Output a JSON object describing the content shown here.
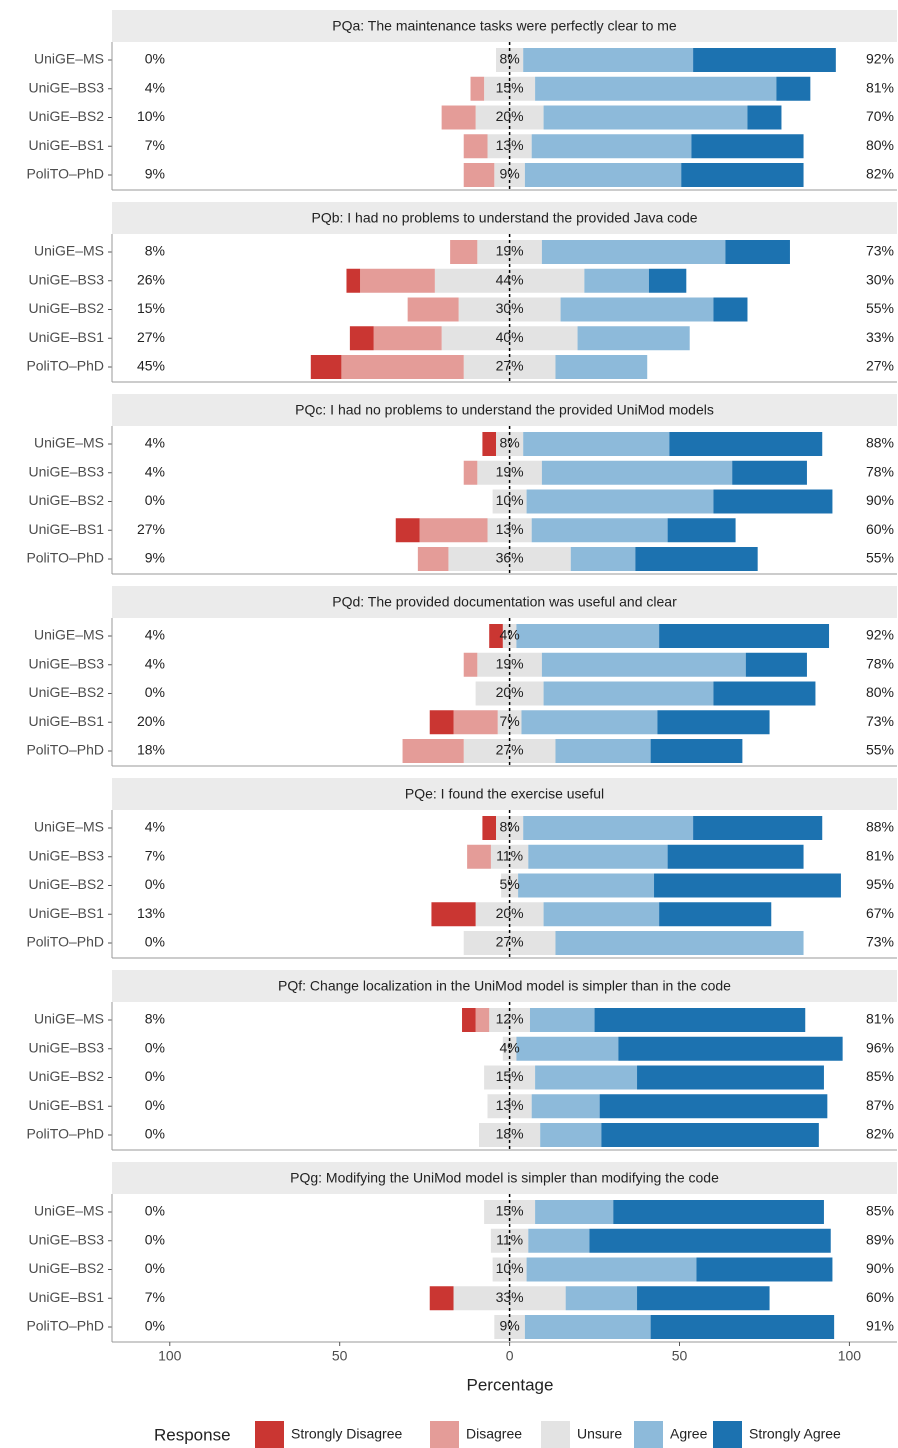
{
  "xlabel": "Percentage",
  "legend_title": "Response",
  "xlim": [
    -117,
    114
  ],
  "xticks": [
    {
      "value": -100,
      "label": "100"
    },
    {
      "value": -50,
      "label": "50"
    },
    0,
    50,
    100
  ],
  "chart_data": [
    {
      "type": "bar",
      "title": "PQa: The maintenance tasks were perfectly clear to me",
      "categories": [
        "UniGE–MS",
        "UniGE–BS3",
        "UniGE–BS2",
        "UniGE–BS1",
        "PoliTO–PhD"
      ],
      "series": [
        {
          "name": "Strongly Disagree",
          "color": "#ca3632",
          "values": [
            0,
            0,
            0,
            0,
            0
          ]
        },
        {
          "name": "Disagree",
          "color": "#e49c98",
          "values": [
            0,
            4,
            10,
            7,
            9
          ]
        },
        {
          "name": "Unsure",
          "color": "#e3e3e3",
          "values": [
            8,
            15,
            20,
            13,
            9
          ],
          "value_labels": [
            "8%",
            "15%",
            "20%",
            "13%",
            "9%"
          ]
        },
        {
          "name": "Agree",
          "color": "#8dbada",
          "values": [
            50,
            71,
            60,
            47,
            46
          ]
        },
        {
          "name": "Strongly Agree",
          "color": "#1c72b0",
          "values": [
            42,
            10,
            10,
            33,
            36
          ]
        }
      ],
      "left_labels": [
        "0%",
        "4%",
        "10%",
        "7%",
        "9%"
      ],
      "right_labels": [
        "92%",
        "81%",
        "70%",
        "80%",
        "82%"
      ]
    },
    {
      "type": "bar",
      "title": "PQb: I had no problems to understand the provided Java code",
      "categories": [
        "UniGE–MS",
        "UniGE–BS3",
        "UniGE–BS2",
        "UniGE–BS1",
        "PoliTO–PhD"
      ],
      "series": [
        {
          "name": "Strongly Disagree",
          "color": "#ca3632",
          "values": [
            0,
            4,
            0,
            7,
            9
          ]
        },
        {
          "name": "Disagree",
          "color": "#e49c98",
          "values": [
            8,
            22,
            15,
            20,
            36
          ]
        },
        {
          "name": "Unsure",
          "color": "#e3e3e3",
          "values": [
            19,
            44,
            30,
            40,
            27
          ],
          "value_labels": [
            "19%",
            "44%",
            "30%",
            "40%",
            "27%"
          ]
        },
        {
          "name": "Agree",
          "color": "#8dbada",
          "values": [
            54,
            19,
            45,
            33,
            27
          ]
        },
        {
          "name": "Strongly Agree",
          "color": "#1c72b0",
          "values": [
            19,
            11,
            10,
            0,
            0
          ]
        }
      ],
      "left_labels": [
        "8%",
        "26%",
        "15%",
        "27%",
        "45%"
      ],
      "right_labels": [
        "73%",
        "30%",
        "55%",
        "33%",
        "27%"
      ]
    },
    {
      "type": "bar",
      "title": "PQc: I had no problems to understand the provided UniMod models",
      "categories": [
        "UniGE–MS",
        "UniGE–BS3",
        "UniGE–BS2",
        "UniGE–BS1",
        "PoliTO–PhD"
      ],
      "series": [
        {
          "name": "Strongly Disagree",
          "color": "#ca3632",
          "values": [
            4,
            0,
            0,
            7,
            0
          ]
        },
        {
          "name": "Disagree",
          "color": "#e49c98",
          "values": [
            0,
            4,
            0,
            20,
            9
          ]
        },
        {
          "name": "Unsure",
          "color": "#e3e3e3",
          "values": [
            8,
            19,
            10,
            13,
            36
          ],
          "value_labels": [
            "8%",
            "19%",
            "10%",
            "13%",
            "36%"
          ]
        },
        {
          "name": "Agree",
          "color": "#8dbada",
          "values": [
            43,
            56,
            55,
            40,
            19
          ]
        },
        {
          "name": "Strongly Agree",
          "color": "#1c72b0",
          "values": [
            45,
            22,
            35,
            20,
            36
          ]
        }
      ],
      "left_labels": [
        "4%",
        "4%",
        "0%",
        "27%",
        "9%"
      ],
      "right_labels": [
        "88%",
        "78%",
        "90%",
        "60%",
        "55%"
      ]
    },
    {
      "type": "bar",
      "title": "PQd: The provided documentation was useful and clear",
      "categories": [
        "UniGE–MS",
        "UniGE–BS3",
        "UniGE–BS2",
        "UniGE–BS1",
        "PoliTO–PhD"
      ],
      "series": [
        {
          "name": "Strongly Disagree",
          "color": "#ca3632",
          "values": [
            4,
            0,
            0,
            7,
            0
          ]
        },
        {
          "name": "Disagree",
          "color": "#e49c98",
          "values": [
            0,
            4,
            0,
            13,
            18
          ]
        },
        {
          "name": "Unsure",
          "color": "#e3e3e3",
          "values": [
            4,
            19,
            20,
            7,
            27
          ],
          "value_labels": [
            "4%",
            "19%",
            "20%",
            "7%",
            "27%"
          ]
        },
        {
          "name": "Agree",
          "color": "#8dbada",
          "values": [
            42,
            60,
            50,
            40,
            28
          ]
        },
        {
          "name": "Strongly Agree",
          "color": "#1c72b0",
          "values": [
            50,
            18,
            30,
            33,
            27
          ]
        }
      ],
      "left_labels": [
        "4%",
        "4%",
        "0%",
        "20%",
        "18%"
      ],
      "right_labels": [
        "92%",
        "78%",
        "80%",
        "73%",
        "55%"
      ]
    },
    {
      "type": "bar",
      "title": "PQe: I found the exercise useful",
      "categories": [
        "UniGE–MS",
        "UniGE–BS3",
        "UniGE–BS2",
        "UniGE–BS1",
        "PoliTO–PhD"
      ],
      "series": [
        {
          "name": "Strongly Disagree",
          "color": "#ca3632",
          "values": [
            4,
            0,
            0,
            13,
            0
          ]
        },
        {
          "name": "Disagree",
          "color": "#e49c98",
          "values": [
            0,
            7,
            0,
            0,
            0
          ]
        },
        {
          "name": "Unsure",
          "color": "#e3e3e3",
          "values": [
            8,
            11,
            5,
            20,
            27
          ],
          "value_labels": [
            "8%",
            "11%",
            "5%",
            "20%",
            "27%"
          ]
        },
        {
          "name": "Agree",
          "color": "#8dbada",
          "values": [
            50,
            41,
            40,
            34,
            73
          ]
        },
        {
          "name": "Strongly Agree",
          "color": "#1c72b0",
          "values": [
            38,
            40,
            55,
            33,
            0
          ]
        }
      ],
      "left_labels": [
        "4%",
        "7%",
        "0%",
        "13%",
        "0%"
      ],
      "right_labels": [
        "88%",
        "81%",
        "95%",
        "67%",
        "73%"
      ]
    },
    {
      "type": "bar",
      "title": "PQf: Change localization in the UniMod model is simpler than in the code",
      "categories": [
        "UniGE–MS",
        "UniGE–BS3",
        "UniGE–BS2",
        "UniGE–BS1",
        "PoliTO–PhD"
      ],
      "series": [
        {
          "name": "Strongly Disagree",
          "color": "#ca3632",
          "values": [
            4,
            0,
            0,
            0,
            0
          ]
        },
        {
          "name": "Disagree",
          "color": "#e49c98",
          "values": [
            4,
            0,
            0,
            0,
            0
          ]
        },
        {
          "name": "Unsure",
          "color": "#e3e3e3",
          "values": [
            12,
            4,
            15,
            13,
            18
          ],
          "value_labels": [
            "12%",
            "4%",
            "15%",
            "13%",
            "18%"
          ]
        },
        {
          "name": "Agree",
          "color": "#8dbada",
          "values": [
            19,
            30,
            30,
            20,
            18
          ]
        },
        {
          "name": "Strongly Agree",
          "color": "#1c72b0",
          "values": [
            62,
            66,
            55,
            67,
            64
          ]
        }
      ],
      "left_labels": [
        "8%",
        "0%",
        "0%",
        "0%",
        "0%"
      ],
      "right_labels": [
        "81%",
        "96%",
        "85%",
        "87%",
        "82%"
      ]
    },
    {
      "type": "bar",
      "title": "PQg: Modifying the UniMod model is simpler than modifying the code",
      "categories": [
        "UniGE–MS",
        "UniGE–BS3",
        "UniGE–BS2",
        "UniGE–BS1",
        "PoliTO–PhD"
      ],
      "series": [
        {
          "name": "Strongly Disagree",
          "color": "#ca3632",
          "values": [
            0,
            0,
            0,
            7,
            0
          ]
        },
        {
          "name": "Disagree",
          "color": "#e49c98",
          "values": [
            0,
            0,
            0,
            0,
            0
          ]
        },
        {
          "name": "Unsure",
          "color": "#e3e3e3",
          "values": [
            15,
            11,
            10,
            33,
            9
          ],
          "value_labels": [
            "15%",
            "11%",
            "10%",
            "33%",
            "9%"
          ]
        },
        {
          "name": "Agree",
          "color": "#8dbada",
          "values": [
            23,
            18,
            50,
            21,
            37
          ]
        },
        {
          "name": "Strongly Agree",
          "color": "#1c72b0",
          "values": [
            62,
            71,
            40,
            39,
            54
          ]
        }
      ],
      "left_labels": [
        "0%",
        "0%",
        "0%",
        "7%",
        "0%"
      ],
      "right_labels": [
        "85%",
        "89%",
        "90%",
        "60%",
        "91%"
      ]
    }
  ]
}
